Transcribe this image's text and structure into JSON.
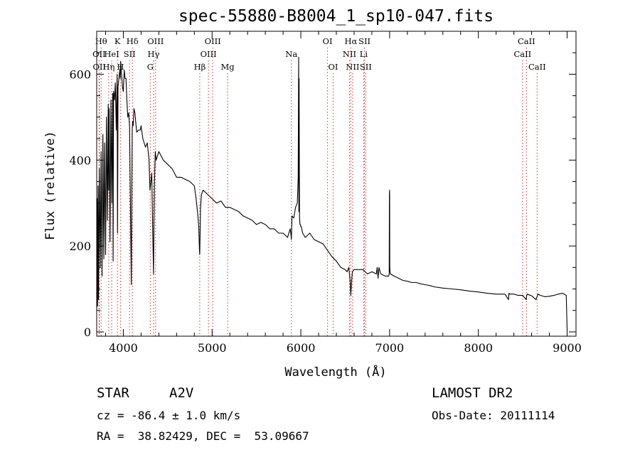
{
  "title": "spec-55880-B8004_1_sp10-047.fits",
  "info": {
    "object_class": "STAR",
    "subclass": "A2V",
    "survey": "LAMOST DR2",
    "cz": "cz = -86.4 ± 1.0 km/s",
    "obs_date": "Obs-Date: 20111114",
    "coords": "RA =  38.82429, DEC =  53.09667"
  },
  "colors": {
    "spectrum": "#000000",
    "line_markers": "#d62728",
    "axes": "#000000",
    "background": "#ffffff"
  },
  "chart_data": {
    "type": "line",
    "title": "spec-55880-B8004_1_sp10-047.fits",
    "xlabel": "Wavelength (Å)",
    "ylabel": "Flux (relative)",
    "xlim": [
      3700,
      9100
    ],
    "ylim": [
      -10,
      700
    ],
    "xticks": [
      4000,
      5000,
      6000,
      7000,
      8000,
      9000
    ],
    "yticks": [
      0,
      200,
      400,
      600
    ],
    "grid": false,
    "series": [
      {
        "x": [
          3700,
          3705,
          3710,
          3715,
          3720,
          3730,
          3740,
          3750,
          3760,
          3770,
          3780,
          3790,
          3800,
          3810,
          3820,
          3830,
          3835,
          3840,
          3850,
          3860,
          3870,
          3880,
          3885,
          3890,
          3900,
          3910,
          3920,
          3930,
          3935,
          3940,
          3950,
          3960,
          3965,
          3970,
          3980,
          3990,
          4000,
          4010,
          4020,
          4030,
          4040,
          4050,
          4060,
          4070,
          4080,
          4090,
          4095,
          4100,
          4105,
          4110,
          4120,
          4130,
          4150,
          4170,
          4190,
          4200,
          4220,
          4250,
          4270,
          4290,
          4300,
          4320,
          4330,
          4340,
          4345,
          4350,
          4360,
          4370,
          4400,
          4450,
          4500,
          4550,
          4600,
          4650,
          4700,
          4750,
          4800,
          4820,
          4840,
          4850,
          4858,
          4861,
          4864,
          4870,
          4880,
          4900,
          4950,
          5000,
          5050,
          5100,
          5150,
          5200,
          5250,
          5300,
          5350,
          5400,
          5450,
          5500,
          5550,
          5600,
          5650,
          5700,
          5750,
          5800,
          5850,
          5880,
          5890,
          5893,
          5896,
          5900,
          5920,
          5940,
          5960,
          5970,
          5975,
          5978,
          5980,
          5985,
          5990,
          5995,
          6000,
          6005,
          6010,
          6020,
          6050,
          6100,
          6150,
          6200,
          6250,
          6300,
          6350,
          6400,
          6450,
          6500,
          6520,
          6540,
          6555,
          6563,
          6570,
          6580,
          6600,
          6650,
          6700,
          6750,
          6800,
          6850,
          6860,
          6870,
          6880,
          6900,
          6950,
          6990,
          6995,
          6998,
          7000,
          7002,
          7005,
          7010,
          7050,
          7100,
          7150,
          7200,
          7250,
          7300,
          7350,
          7400,
          7450,
          7500,
          7600,
          7700,
          7800,
          7900,
          8000,
          8100,
          8200,
          8300,
          8340,
          8345,
          8350,
          8400,
          8450,
          8500,
          8540,
          8545,
          8550,
          8600,
          8650,
          8665,
          8670,
          8700,
          8750,
          8800,
          8850,
          8900,
          8950,
          8990,
          9000,
          9005
        ],
        "y": [
          50,
          310,
          60,
          340,
          75,
          380,
          150,
          420,
          130,
          460,
          170,
          440,
          180,
          500,
          260,
          530,
          330,
          520,
          210,
          540,
          300,
          555,
          165,
          560,
          540,
          580,
          470,
          600,
          230,
          570,
          590,
          610,
          590,
          630,
          600,
          570,
          560,
          610,
          590,
          590,
          540,
          500,
          510,
          480,
          300,
          110,
          300,
          470,
          490,
          480,
          520,
          510,
          465,
          470,
          470,
          480,
          450,
          430,
          440,
          400,
          330,
          370,
          250,
          135,
          250,
          340,
          420,
          400,
          420,
          400,
          390,
          380,
          360,
          360,
          355,
          350,
          340,
          310,
          270,
          245,
          190,
          180,
          220,
          290,
          320,
          330,
          320,
          310,
          300,
          305,
          290,
          290,
          285,
          280,
          270,
          265,
          260,
          250,
          255,
          250,
          240,
          240,
          230,
          230,
          220,
          240,
          225,
          215,
          235,
          270,
          265,
          290,
          300,
          360,
          640,
          280,
          590,
          270,
          250,
          250,
          245,
          245,
          240,
          230,
          220,
          230,
          215,
          210,
          205,
          190,
          175,
          165,
          150,
          145,
          140,
          150,
          120,
          85,
          110,
          140,
          145,
          145,
          145,
          135,
          140,
          135,
          150,
          125,
          150,
          135,
          130,
          130,
          135,
          320,
          330,
          150,
          140,
          135,
          130,
          125,
          120,
          118,
          115,
          115,
          112,
          110,
          108,
          105,
          102,
          100,
          98,
          95,
          93,
          90,
          88,
          88,
          75,
          90,
          88,
          88,
          85,
          85,
          75,
          85,
          88,
          84,
          75,
          84,
          88,
          85,
          82,
          83,
          85,
          88,
          90,
          85,
          5,
          5
        ]
      }
    ],
    "line_markers": [
      {
        "x": 3727,
        "label": "OII",
        "row": 2
      },
      {
        "x": 3730,
        "label": "OII",
        "row": 3
      },
      {
        "x": 3750,
        "label": "Hθ",
        "row": 1
      },
      {
        "x": 3835,
        "label": "Hη",
        "row": 3
      },
      {
        "x": 3869,
        "label": "HeI",
        "row": 2
      },
      {
        "x": 3934,
        "label": "K",
        "row": 1
      },
      {
        "x": 3969,
        "label": "H",
        "row": 3
      },
      {
        "x": 4070,
        "label": "SII",
        "row": 2
      },
      {
        "x": 4102,
        "label": "Hδ",
        "row": 1
      },
      {
        "x": 4304,
        "label": "G",
        "row": 3
      },
      {
        "x": 4341,
        "label": "Hγ",
        "row": 2
      },
      {
        "x": 4363,
        "label": "OIII",
        "row": 1
      },
      {
        "x": 4861,
        "label": "Hβ",
        "row": 3
      },
      {
        "x": 4959,
        "label": "OIII",
        "row": 2
      },
      {
        "x": 5007,
        "label": "OIII",
        "row": 1
      },
      {
        "x": 5175,
        "label": "Mg",
        "row": 3
      },
      {
        "x": 5893,
        "label": "Na",
        "row": 2
      },
      {
        "x": 6300,
        "label": "OI",
        "row": 1
      },
      {
        "x": 6364,
        "label": "OI",
        "row": 3
      },
      {
        "x": 6548,
        "label": "NII",
        "row": 2
      },
      {
        "x": 6563,
        "label": "Hα",
        "row": 1
      },
      {
        "x": 6583,
        "label": "NII",
        "row": 3
      },
      {
        "x": 6708,
        "label": "Li",
        "row": 2
      },
      {
        "x": 6717,
        "label": "SII",
        "row": 1
      },
      {
        "x": 6731,
        "label": "SII",
        "row": 3
      },
      {
        "x": 8498,
        "label": "CaII",
        "row": 2
      },
      {
        "x": 8542,
        "label": "CaII",
        "row": 1
      },
      {
        "x": 8662,
        "label": "CaII",
        "row": 3
      }
    ]
  }
}
